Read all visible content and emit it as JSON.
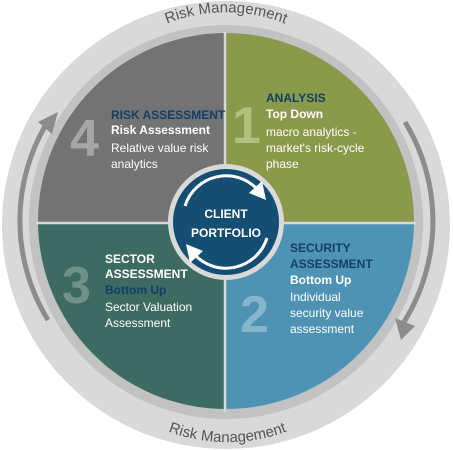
{
  "ring": {
    "top_label": "Risk Management",
    "bottom_label": "Risk Management"
  },
  "center": {
    "line1": "CLIENT",
    "line2": "PORTFOLIO"
  },
  "quadrants": {
    "analysis": {
      "number": "1",
      "heading": "ANALYSIS",
      "subheading": "Top Down",
      "body": [
        "macro analytics -",
        "market's risk-cycle",
        "phase"
      ]
    },
    "security": {
      "number": "2",
      "heading": [
        "SECURITY",
        "ASSESSMENT"
      ],
      "subheading": "Bottom Up",
      "body": [
        "Individual",
        "security value",
        "assessment"
      ]
    },
    "sector": {
      "number": "3",
      "heading": [
        "SECTOR",
        "ASSESSMENT"
      ],
      "subheading": "Bottom Up",
      "body": [
        "Sector Valuation",
        "Assessment"
      ]
    },
    "risk": {
      "number": "4",
      "heading": "RISK ASSESSMENT",
      "subheading": "Risk Assessment",
      "body": [
        "Relative value risk",
        "analytics"
      ]
    }
  },
  "colors": {
    "analysis": "#8a9a4a",
    "security": "#4e93b4",
    "sector": "#3d6b62",
    "risk": "#737373",
    "center": "#144f73",
    "ring_outer": "#d9d9d9",
    "ring_inner": "#bfbfbf"
  }
}
